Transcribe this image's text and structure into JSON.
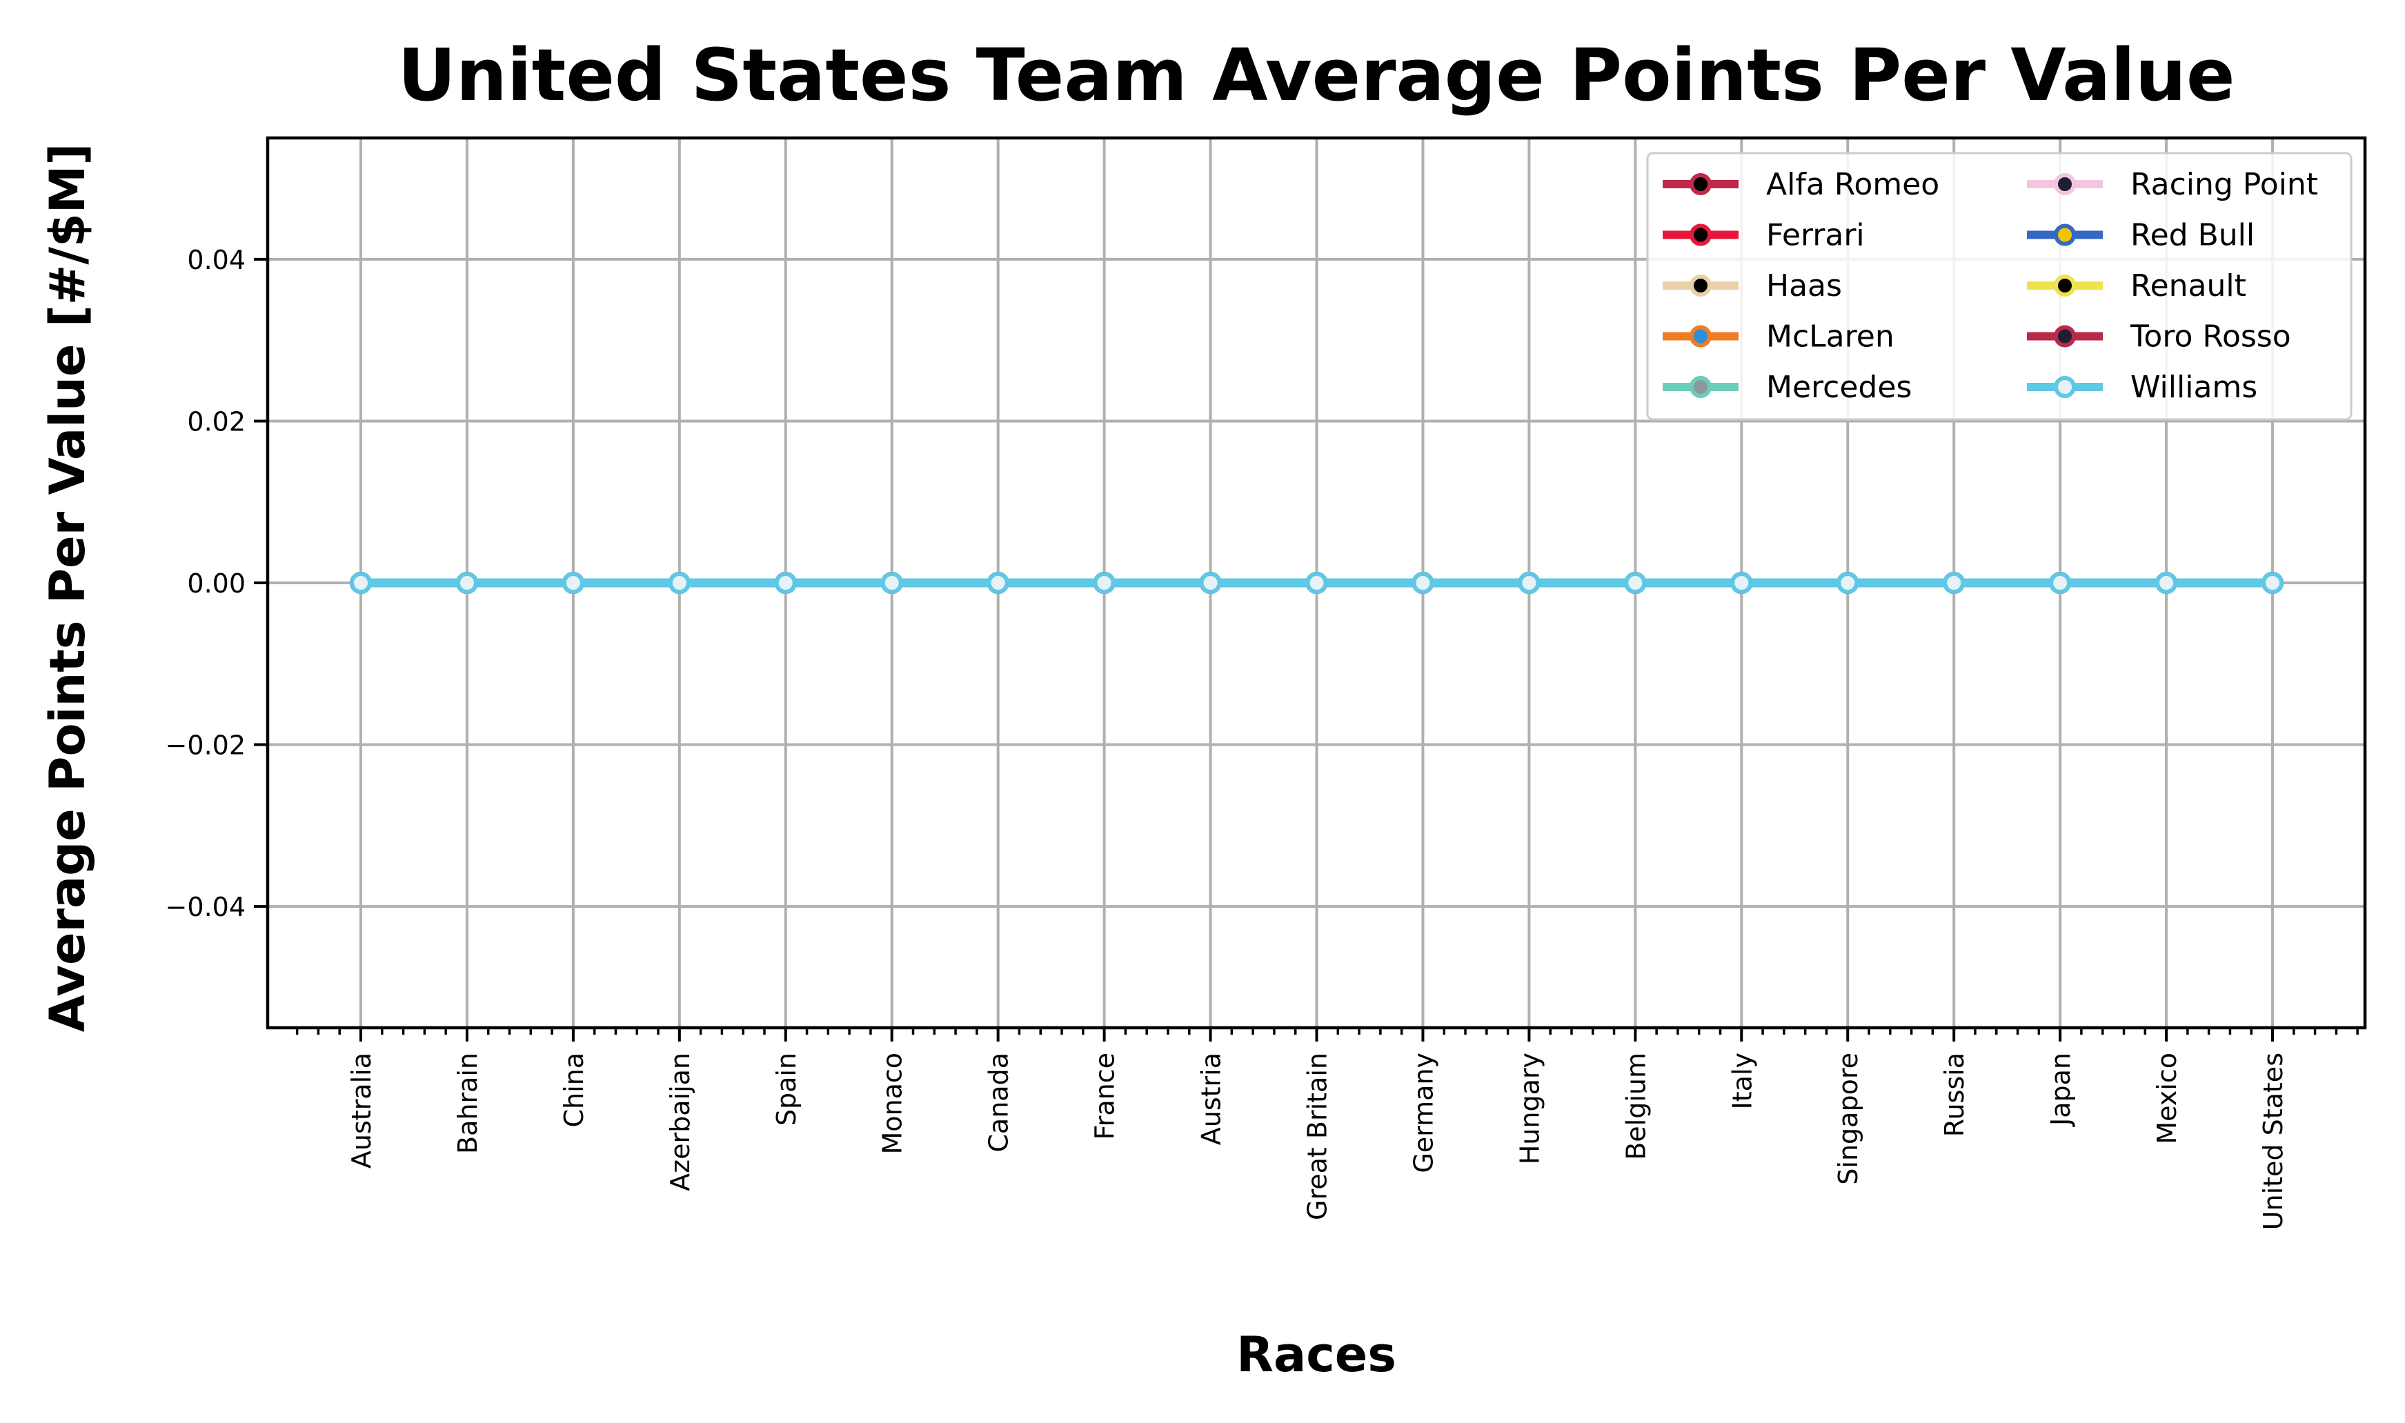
{
  "chart_data": {
    "type": "line",
    "title": "United States Team Average Points Per Value",
    "xlabel": "Races",
    "ylabel": "Average Points Per Value [#/$M]",
    "categories": [
      "Australia",
      "Bahrain",
      "China",
      "Azerbaijan",
      "Spain",
      "Monaco",
      "Canada",
      "France",
      "Austria",
      "Great Britain",
      "Germany",
      "Hungary",
      "Belgium",
      "Italy",
      "Singapore",
      "Russia",
      "Japan",
      "Mexico",
      "United States"
    ],
    "ylim": [
      -0.055,
      0.055
    ],
    "yticks": [
      -0.04,
      -0.02,
      0.0,
      0.02,
      0.04
    ],
    "ytick_labels": [
      "−0.04",
      "−0.02",
      "0.00",
      "0.02",
      "0.04"
    ],
    "grid": true,
    "legend_position": "top-right",
    "legend_columns": 2,
    "series": [
      {
        "name": "Alfa Romeo",
        "color": "#c1294a",
        "marker_face": "#000000",
        "values": [
          0,
          0,
          0,
          0,
          0,
          0,
          0,
          0,
          0,
          0,
          0,
          0,
          0,
          0,
          0,
          0,
          0,
          0,
          0
        ]
      },
      {
        "name": "Ferrari",
        "color": "#e8173a",
        "marker_face": "#000000",
        "values": [
          0,
          0,
          0,
          0,
          0,
          0,
          0,
          0,
          0,
          0,
          0,
          0,
          0,
          0,
          0,
          0,
          0,
          0,
          0
        ]
      },
      {
        "name": "Haas",
        "color": "#e8d1a6",
        "marker_face": "#000000",
        "values": [
          0,
          0,
          0,
          0,
          0,
          0,
          0,
          0,
          0,
          0,
          0,
          0,
          0,
          0,
          0,
          0,
          0,
          0,
          0
        ]
      },
      {
        "name": "McLaren",
        "color": "#f07c24",
        "marker_face": "#2b8fd9",
        "values": [
          0,
          0,
          0,
          0,
          0,
          0,
          0,
          0,
          0,
          0,
          0,
          0,
          0,
          0,
          0,
          0,
          0,
          0,
          0
        ]
      },
      {
        "name": "Mercedes",
        "color": "#6ccdbb",
        "marker_face": "#8b9a99",
        "values": [
          0,
          0,
          0,
          0,
          0,
          0,
          0,
          0,
          0,
          0,
          0,
          0,
          0,
          0,
          0,
          0,
          0,
          0,
          0
        ]
      },
      {
        "name": "Racing Point",
        "color": "#f2c6de",
        "marker_face": "#1f1f33",
        "values": [
          0,
          0,
          0,
          0,
          0,
          0,
          0,
          0,
          0,
          0,
          0,
          0,
          0,
          0,
          0,
          0,
          0,
          0,
          0
        ]
      },
      {
        "name": "Red Bull",
        "color": "#3468c3",
        "marker_face": "#f0c500",
        "values": [
          0,
          0,
          0,
          0,
          0,
          0,
          0,
          0,
          0,
          0,
          0,
          0,
          0,
          0,
          0,
          0,
          0,
          0,
          0
        ]
      },
      {
        "name": "Renault",
        "color": "#f0e24a",
        "marker_face": "#000000",
        "values": [
          0,
          0,
          0,
          0,
          0,
          0,
          0,
          0,
          0,
          0,
          0,
          0,
          0,
          0,
          0,
          0,
          0,
          0,
          0
        ]
      },
      {
        "name": "Toro Rosso",
        "color": "#b9294a",
        "marker_face": "#1f1f33",
        "values": [
          0,
          0,
          0,
          0,
          0,
          0,
          0,
          0,
          0,
          0,
          0,
          0,
          0,
          0,
          0,
          0,
          0,
          0,
          0
        ]
      },
      {
        "name": "Williams",
        "color": "#5ec8e6",
        "marker_face": "#e6f2f6",
        "values": [
          0,
          0,
          0,
          0,
          0,
          0,
          0,
          0,
          0,
          0,
          0,
          0,
          0,
          0,
          0,
          0,
          0,
          0,
          0
        ]
      }
    ]
  }
}
